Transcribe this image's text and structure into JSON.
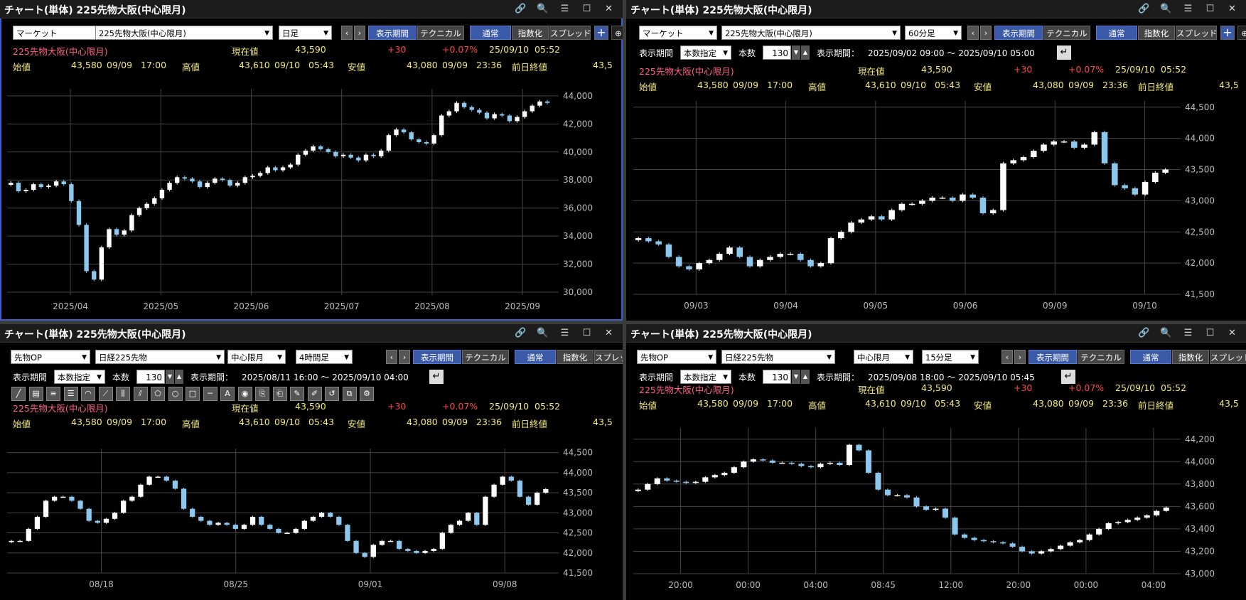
{
  "colors": {
    "accent_blue": "#3a5aa8",
    "candle_up": "#ffffff",
    "candle_down": "#8cc8ee",
    "grid": "#444444",
    "axis_text": "#bbbbbb",
    "name_pink": "#ff5e8a",
    "value_yellow": "#f2ea7c",
    "change_red": "#ff4444"
  },
  "icons": {
    "link": "link-icon",
    "search": "search-icon",
    "menu": "menu-icon",
    "maximize": "maximize-icon",
    "close": "close-icon"
  },
  "quote": {
    "name": "225先物大阪(中心限月)",
    "current_label": "現在値",
    "current": "43,590",
    "change": "+30",
    "change_pct": "+0.07%",
    "date": "25/09/10",
    "time": "05:52",
    "open_label": "始値",
    "open": "43,580",
    "open_date": "09/09",
    "open_time": "17:00",
    "high_label": "高値",
    "high": "43,610",
    "high_date": "09/10",
    "high_time": "05:43",
    "low_label": "安値",
    "low": "43,080",
    "low_date": "09/09",
    "low_time": "23:36",
    "prev_label": "前日終値",
    "prev": "43,5"
  },
  "panels": [
    {
      "title": "チャート(単体) 225先物大阪(中心限月)",
      "market": "マーケット",
      "symbol": "225先物大阪(中心限月)",
      "period": "日足",
      "buttons": {
        "range": "表示期間",
        "tech": "テクニカル",
        "normal": "通常",
        "index": "指数化",
        "spread": "スプレッド"
      }
    },
    {
      "title": "チャート(単体) 225先物大阪(中心限月)",
      "market": "マーケット",
      "symbol": "225先物大阪(中心限月)",
      "period": "60分足",
      "buttons": {
        "range": "表示期間",
        "tech": "テクニカル",
        "normal": "通常",
        "index": "指数化",
        "spread": "スプレッド"
      },
      "range_row": {
        "label": "表示期間",
        "mode": "本数指定",
        "count_label": "本数",
        "count": "130",
        "period_label": "表示期間：",
        "period": "2025/09/02 09:00 ～ 2025/09/10 05:00"
      }
    },
    {
      "title": "チャート(単体) 225先物大阪(中心限月)",
      "market": "先物OP",
      "symbol": "日経225先物",
      "month": "中心限月",
      "period": "4時間足",
      "buttons": {
        "range": "表示期間",
        "tech": "テクニカル",
        "normal": "通常",
        "index": "指数化",
        "spread": "スプレッド"
      },
      "range_row": {
        "label": "表示期間",
        "mode": "本数指定",
        "count_label": "本数",
        "count": "130",
        "period_label": "表示期間：",
        "period": "2025/08/11 16:00 ～ 2025/09/10 04:00"
      }
    },
    {
      "title": "チャート(単体) 225先物大阪(中心限月)",
      "market": "先物OP",
      "symbol": "日経225先物",
      "month": "中心限月",
      "period": "15分足",
      "buttons": {
        "range": "表示期間",
        "tech": "テクニカル",
        "normal": "通常",
        "index": "指数化",
        "spread": "スプレッド"
      },
      "range_row": {
        "label": "表示期間",
        "mode": "本数指定",
        "count_label": "本数",
        "count": "130",
        "period_label": "表示期間：",
        "period": "2025/09/08 18:00 ～ 2025/09/10 05:45"
      }
    }
  ],
  "chart_data": [
    {
      "type": "line",
      "candles": "candlestick",
      "xlabels": [
        "2025/04",
        "2025/05",
        "2025/06",
        "2025/07",
        "2025/08",
        "2025/09"
      ],
      "yticks": [
        "30,000",
        "32,000",
        "34,000",
        "36,000",
        "38,000",
        "40,000",
        "42,000",
        "44,000"
      ],
      "ylim": [
        29800,
        44500
      ],
      "values": [
        37800,
        37200,
        37300,
        37700,
        37500,
        37600,
        37900,
        37700,
        36500,
        34800,
        31500,
        30900,
        33200,
        34500,
        34100,
        34400,
        35500,
        36000,
        36300,
        36700,
        37300,
        37800,
        38200,
        38100,
        37900,
        37500,
        37800,
        38100,
        38000,
        37600,
        37800,
        38200,
        38300,
        38500,
        38900,
        38700,
        38900,
        39100,
        39800,
        40100,
        40400,
        40200,
        40000,
        39700,
        39800,
        39600,
        39400,
        39800,
        39700,
        40100,
        41200,
        41600,
        41400,
        40900,
        40700,
        40600,
        41200,
        42600,
        42900,
        43500,
        43200,
        43000,
        42800,
        42400,
        42700,
        42600,
        42200,
        42500,
        42900,
        43300,
        43600,
        43500
      ]
    },
    {
      "type": "line",
      "candles": "candlestick",
      "xlabels": [
        "09/03",
        "09/04",
        "09/05",
        "09/06",
        "09/09",
        "09/10"
      ],
      "yticks": [
        "41,500",
        "42,000",
        "42,500",
        "43,000",
        "43,500",
        "44,000",
        "44,500"
      ],
      "ylim": [
        41500,
        44600
      ],
      "values": [
        42400,
        42350,
        42300,
        42100,
        41950,
        41900,
        42000,
        42050,
        42150,
        42250,
        42100,
        41950,
        42050,
        42100,
        42150,
        42150,
        42050,
        41950,
        42000,
        42400,
        42500,
        42650,
        42700,
        42750,
        42700,
        42850,
        42950,
        42950,
        43000,
        43050,
        43050,
        43000,
        43100,
        43050,
        42800,
        42850,
        43600,
        43650,
        43700,
        43800,
        43900,
        43950,
        43950,
        43850,
        43900,
        44100,
        43600,
        43250,
        43200,
        43100,
        43300,
        43450,
        43500
      ]
    },
    {
      "type": "line",
      "candles": "candlestick",
      "xlabels": [
        "08/18",
        "08/25",
        "09/01",
        "09/08"
      ],
      "yticks": [
        "41,500",
        "42,000",
        "42,500",
        "43,000",
        "43,500",
        "44,000",
        "44,500"
      ],
      "ylim": [
        41500,
        44600
      ],
      "values": [
        42300,
        42300,
        42600,
        42900,
        43300,
        43400,
        43400,
        43300,
        43100,
        42800,
        42750,
        42850,
        43000,
        43300,
        43400,
        43700,
        43900,
        43900,
        43800,
        43600,
        43100,
        42900,
        42800,
        42700,
        42750,
        42700,
        42600,
        42700,
        42900,
        42700,
        42600,
        42500,
        42500,
        42600,
        42800,
        42900,
        43000,
        42900,
        42700,
        42300,
        42000,
        41900,
        42200,
        42300,
        42300,
        42100,
        42050,
        42000,
        42050,
        42100,
        42500,
        42700,
        42800,
        43000,
        42700,
        43400,
        43700,
        43900,
        43800,
        43400,
        43200,
        43500,
        43590
      ]
    },
    {
      "type": "line",
      "candles": "candlestick",
      "xlabels": [
        "20:00",
        "00:00",
        "04:00",
        "08:45",
        "12:00",
        "20:00",
        "00:00",
        "04:00"
      ],
      "yticks": [
        "43,000",
        "43,200",
        "43,400",
        "43,600",
        "43,800",
        "44,000",
        "44,200"
      ],
      "ylim": [
        43000,
        44300
      ],
      "values": [
        43750,
        43800,
        43850,
        43830,
        43820,
        43810,
        43820,
        43860,
        43880,
        43900,
        43950,
        44000,
        44020,
        44010,
        43990,
        43990,
        43980,
        43960,
        43950,
        43980,
        43990,
        43970,
        44150,
        44100,
        43900,
        43750,
        43700,
        43700,
        43680,
        43600,
        43570,
        43580,
        43500,
        43350,
        43320,
        43300,
        43290,
        43280,
        43270,
        43240,
        43200,
        43180,
        43200,
        43220,
        43250,
        43280,
        43300,
        43350,
        43400,
        43450,
        43460,
        43480,
        43500,
        43520,
        43560,
        43590
      ]
    }
  ]
}
